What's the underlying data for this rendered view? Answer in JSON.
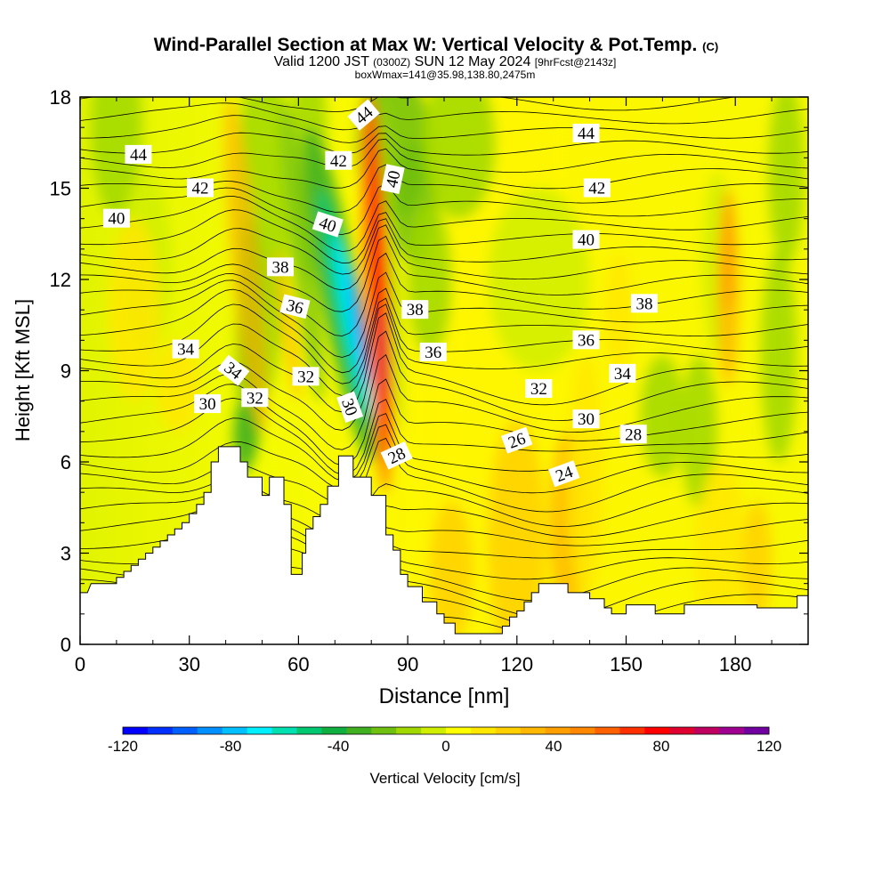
{
  "chart_data": {
    "type": "contour-section",
    "title": "Wind-Parallel Section at Max W: Vertical Velocity & Pot.Temp.",
    "title_mark": "(C)",
    "subtitle_valid": "Valid 1200 JST",
    "subtitle_utc": "(0300Z)",
    "subtitle_date": "SUN 12 May 2024",
    "subtitle_fcst": "[9hrFcst@2143z]",
    "box_info": "boxWmax=141@35.98,138.80,2475m",
    "xlabel": "Distance [nm]",
    "ylabel": "Height [Kft MSL]",
    "xlim": [
      0,
      200
    ],
    "ylim": [
      0,
      18
    ],
    "x_ticks": [
      0,
      30,
      60,
      90,
      120,
      150,
      180
    ],
    "y_ticks": [
      0,
      3,
      6,
      9,
      12,
      15,
      18
    ],
    "colorbar": {
      "label": "Vertical Velocity [cm/s]",
      "range": [
        -120,
        120
      ],
      "step": 10,
      "tick_labels": [
        "-120",
        "-80",
        "-40",
        "0",
        "40",
        "80",
        "120"
      ],
      "colors": [
        "#0000ff",
        "#0030ff",
        "#0060ff",
        "#0090ff",
        "#00c0ff",
        "#00f0ff",
        "#00e0b0",
        "#00c870",
        "#10b040",
        "#40b020",
        "#70c010",
        "#a0d800",
        "#d0ee00",
        "#ffff00",
        "#ffe800",
        "#ffd000",
        "#ffb800",
        "#ffa000",
        "#ff8800",
        "#ff6000",
        "#ff3000",
        "#ff0000",
        "#e00030",
        "#c00060",
        "#a00090",
        "#7000a0"
      ]
    },
    "potential_temperature_labels": [
      {
        "text": "44",
        "x": 16,
        "y": 16.1,
        "angle": 0
      },
      {
        "text": "42",
        "x": 33,
        "y": 15.0,
        "angle": 0
      },
      {
        "text": "40",
        "x": 10,
        "y": 14.0,
        "angle": 0
      },
      {
        "text": "34",
        "x": 29,
        "y": 9.7,
        "angle": 0
      },
      {
        "text": "34",
        "x": 42,
        "y": 9.0,
        "angle": 38
      },
      {
        "text": "30",
        "x": 35,
        "y": 7.9,
        "angle": 0
      },
      {
        "text": "32",
        "x": 48,
        "y": 8.1,
        "angle": 0
      },
      {
        "text": "38",
        "x": 55,
        "y": 12.4,
        "angle": 0
      },
      {
        "text": "36",
        "x": 59,
        "y": 11.1,
        "angle": 14
      },
      {
        "text": "32",
        "x": 62,
        "y": 8.8,
        "angle": 0
      },
      {
        "text": "40",
        "x": 68,
        "y": 13.8,
        "angle": 18
      },
      {
        "text": "42",
        "x": 71,
        "y": 15.9,
        "angle": 0
      },
      {
        "text": "44",
        "x": 78,
        "y": 17.4,
        "angle": -40
      },
      {
        "text": "30",
        "x": 74,
        "y": 7.8,
        "angle": 70
      },
      {
        "text": "40",
        "x": 86,
        "y": 15.3,
        "angle": -78
      },
      {
        "text": "28",
        "x": 87,
        "y": 6.2,
        "angle": -25
      },
      {
        "text": "38",
        "x": 92,
        "y": 11.0,
        "angle": 0
      },
      {
        "text": "36",
        "x": 97,
        "y": 9.6,
        "angle": 0
      },
      {
        "text": "32",
        "x": 126,
        "y": 8.4,
        "angle": 0
      },
      {
        "text": "26",
        "x": 120,
        "y": 6.7,
        "angle": -20
      },
      {
        "text": "24",
        "x": 133,
        "y": 5.6,
        "angle": -20
      },
      {
        "text": "30",
        "x": 139,
        "y": 7.4,
        "angle": 0
      },
      {
        "text": "28",
        "x": 152,
        "y": 6.9,
        "angle": 0
      },
      {
        "text": "34",
        "x": 149,
        "y": 8.9,
        "angle": 0
      },
      {
        "text": "36",
        "x": 139,
        "y": 10.0,
        "angle": 0
      },
      {
        "text": "38",
        "x": 155,
        "y": 11.2,
        "angle": 0
      },
      {
        "text": "40",
        "x": 139,
        "y": 13.3,
        "angle": 0
      },
      {
        "text": "42",
        "x": 142,
        "y": 15.0,
        "angle": 0
      },
      {
        "text": "44",
        "x": 139,
        "y": 16.8,
        "angle": 0
      }
    ],
    "terrain_profile": [
      [
        0,
        1.7
      ],
      [
        2,
        1.7
      ],
      [
        3,
        2.0
      ],
      [
        10,
        2.0
      ],
      [
        10,
        2.2
      ],
      [
        12,
        2.2
      ],
      [
        12,
        2.4
      ],
      [
        14,
        2.4
      ],
      [
        14,
        2.6
      ],
      [
        16,
        2.6
      ],
      [
        16,
        2.8
      ],
      [
        18,
        2.8
      ],
      [
        18,
        3.0
      ],
      [
        20,
        3.0
      ],
      [
        20,
        3.2
      ],
      [
        22,
        3.2
      ],
      [
        22,
        3.4
      ],
      [
        24,
        3.4
      ],
      [
        24,
        3.6
      ],
      [
        26,
        3.6
      ],
      [
        26,
        3.8
      ],
      [
        28,
        3.8
      ],
      [
        28,
        4.0
      ],
      [
        30,
        4.0
      ],
      [
        30,
        4.3
      ],
      [
        32,
        4.3
      ],
      [
        32,
        4.6
      ],
      [
        34,
        4.6
      ],
      [
        34,
        5.0
      ],
      [
        36,
        5.0
      ],
      [
        36,
        6.0
      ],
      [
        38,
        6.0
      ],
      [
        38,
        6.5
      ],
      [
        44,
        6.5
      ],
      [
        44,
        6.0
      ],
      [
        46,
        6.0
      ],
      [
        46,
        5.5
      ],
      [
        50,
        5.5
      ],
      [
        50,
        4.9
      ],
      [
        52,
        4.9
      ],
      [
        52,
        5.5
      ],
      [
        56,
        5.5
      ],
      [
        56,
        4.6
      ],
      [
        58,
        4.6
      ],
      [
        58,
        2.3
      ],
      [
        61,
        2.3
      ],
      [
        61,
        3.0
      ],
      [
        62,
        3.0
      ],
      [
        62,
        3.8
      ],
      [
        64,
        3.8
      ],
      [
        64,
        4.2
      ],
      [
        66,
        4.2
      ],
      [
        66,
        4.6
      ],
      [
        68,
        4.6
      ],
      [
        68,
        5.2
      ],
      [
        71,
        5.2
      ],
      [
        71,
        6.2
      ],
      [
        75,
        6.2
      ],
      [
        75,
        5.5
      ],
      [
        80,
        5.5
      ],
      [
        80,
        4.9
      ],
      [
        84,
        4.9
      ],
      [
        84,
        3.6
      ],
      [
        86,
        3.6
      ],
      [
        86,
        3.1
      ],
      [
        88,
        3.1
      ],
      [
        88,
        2.3
      ],
      [
        90,
        2.3
      ],
      [
        90,
        1.9
      ],
      [
        94,
        1.9
      ],
      [
        94,
        1.4
      ],
      [
        98,
        1.4
      ],
      [
        98,
        1.0
      ],
      [
        100,
        1.0
      ],
      [
        100,
        0.7
      ],
      [
        103,
        0.7
      ],
      [
        103,
        0.35
      ],
      [
        116,
        0.35
      ],
      [
        116,
        0.6
      ],
      [
        118,
        0.6
      ],
      [
        118,
        0.9
      ],
      [
        120,
        0.9
      ],
      [
        120,
        1.1
      ],
      [
        122,
        1.1
      ],
      [
        122,
        1.4
      ],
      [
        124,
        1.4
      ],
      [
        124,
        1.7
      ],
      [
        126,
        1.7
      ],
      [
        126,
        2.0
      ],
      [
        134,
        2.0
      ],
      [
        134,
        1.7
      ],
      [
        140,
        1.7
      ],
      [
        140,
        1.5
      ],
      [
        144,
        1.5
      ],
      [
        144,
        1.2
      ],
      [
        146,
        1.2
      ],
      [
        146,
        1.0
      ],
      [
        150,
        1.0
      ],
      [
        150,
        1.3
      ],
      [
        158,
        1.3
      ],
      [
        158,
        1.0
      ],
      [
        166,
        1.0
      ],
      [
        166,
        1.3
      ],
      [
        186,
        1.3
      ],
      [
        186,
        1.2
      ],
      [
        197,
        1.2
      ],
      [
        197,
        1.6
      ],
      [
        200,
        1.6
      ]
    ]
  }
}
